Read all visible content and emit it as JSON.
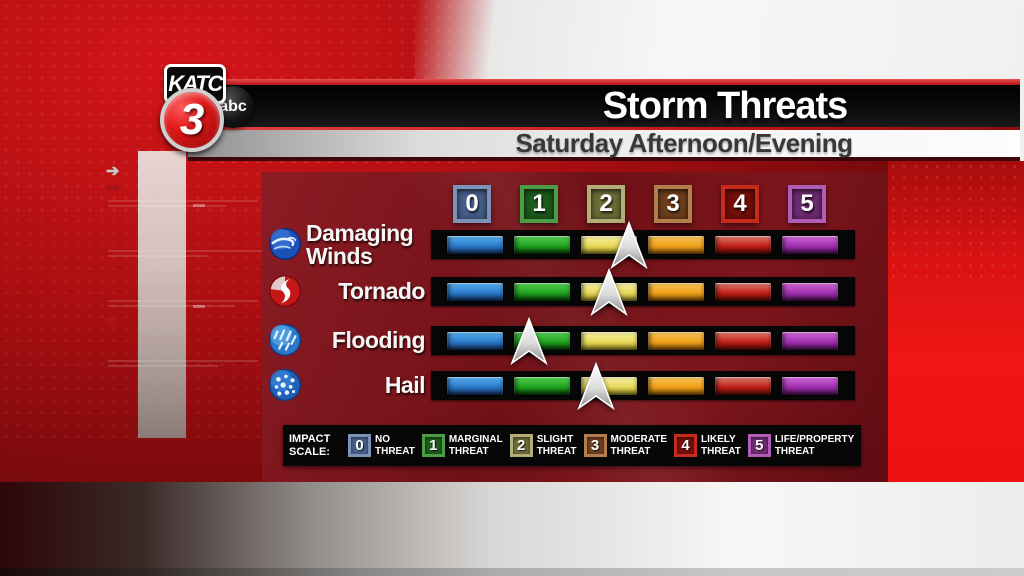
{
  "station": {
    "call_letters": "KATC",
    "channel": "3",
    "network": "abc"
  },
  "header": {
    "title": "Storm Threats",
    "subtitle": "Saturday Afternoon/Evening"
  },
  "legend": {
    "heading": "IMPACT SCALE:"
  },
  "scale": {
    "levels": [
      {
        "value": "0",
        "name_line1": "NO",
        "name_line2": "THREAT",
        "box_outer": "#7d92b6",
        "box_inner": "#49608c",
        "bar_top": "#58b2f2",
        "bar_mid": "#2a7ac8",
        "bar_bottom": "#163a74"
      },
      {
        "value": "1",
        "name_line1": "MARGINAL",
        "name_line2": "THREAT",
        "box_outer": "#4d9c46",
        "box_inner": "#1d5c1d",
        "bar_top": "#55d455",
        "bar_mid": "#1fa31f",
        "bar_bottom": "#0a4a0a"
      },
      {
        "value": "2",
        "name_line1": "SLIGHT",
        "name_line2": "THREAT",
        "box_outer": "#b3ad7a",
        "box_inner": "#6e6e38",
        "bar_top": "#f8f2a8",
        "bar_mid": "#e8d85a",
        "bar_bottom": "#a89a28"
      },
      {
        "value": "3",
        "name_line1": "MODERATE",
        "name_line2": "THREAT",
        "box_outer": "#b37d4e",
        "box_inner": "#70401e",
        "bar_top": "#f8c85a",
        "bar_mid": "#f0a018",
        "bar_bottom": "#9a6008"
      },
      {
        "value": "4",
        "name_line1": "LIKELY",
        "name_line2": "THREAT",
        "box_outer": "#c62a1c",
        "box_inner": "#770f08",
        "bar_top": "#e08070",
        "bar_mid": "#c02018",
        "bar_bottom": "#6a0c06"
      },
      {
        "value": "5",
        "name_line1": "LIFE/PROPERTY",
        "name_line2": "THREAT",
        "box_outer": "#b35cb7",
        "box_inner": "#702c74",
        "bar_top": "#d468dc",
        "bar_mid": "#a030b0",
        "bar_bottom": "#5c1464"
      }
    ]
  },
  "rows": [
    {
      "label": "Damaging Winds",
      "icon": "damaging-winds-icon",
      "arrow_level": 2.3
    },
    {
      "label": "Tornado",
      "icon": "tornado-icon",
      "arrow_level": 2.0
    },
    {
      "label": "Flooding",
      "icon": "flooding-icon",
      "arrow_level": 0.8
    },
    {
      "label": "Hail",
      "icon": "hail-icon",
      "arrow_level": 1.8
    }
  ],
  "chart_data": {
    "type": "table",
    "title": "Storm Threats",
    "subtitle": "Saturday Afternoon/Evening",
    "scale_range": [
      0,
      5
    ],
    "categories": [
      "Damaging Winds",
      "Tornado",
      "Flooding",
      "Hail"
    ],
    "values": [
      2.3,
      2.0,
      0.8,
      1.8
    ],
    "scale_labels": [
      "No Threat",
      "Marginal Threat",
      "Slight Threat",
      "Moderate Threat",
      "Likely Threat",
      "Life/Property Threat"
    ]
  }
}
